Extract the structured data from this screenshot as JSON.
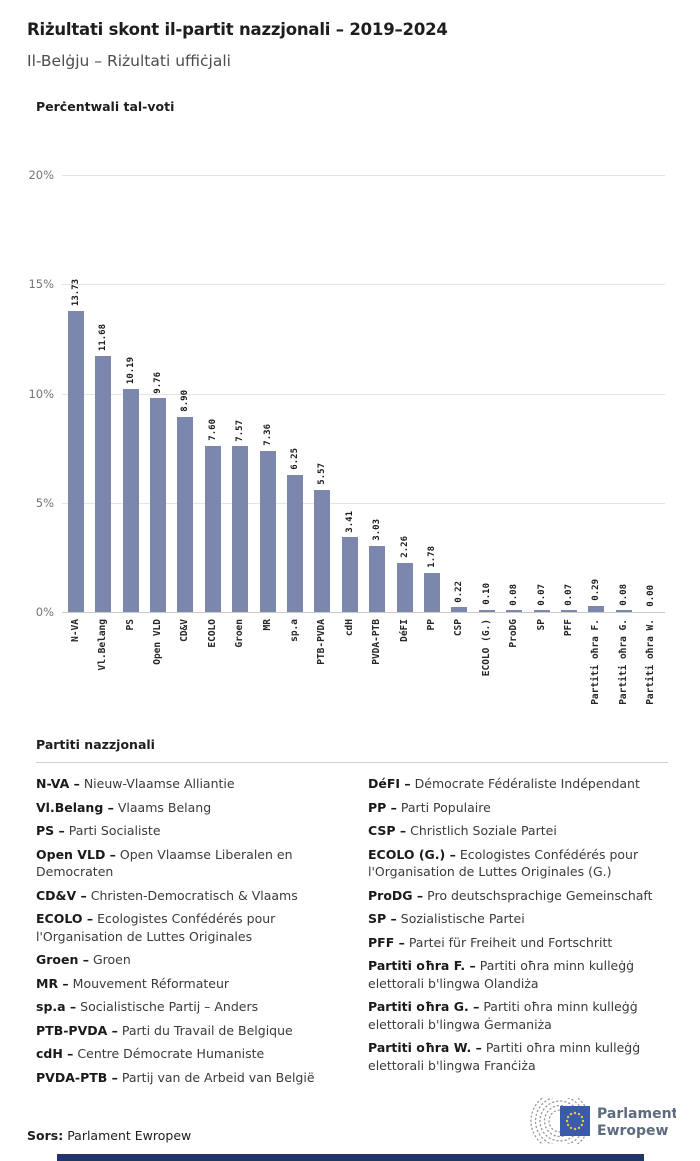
{
  "header": {
    "title": "Riżultati skont il-partit nazzjonali – 2019–2024",
    "subtitle": "Il-Belġju – Riżultati uffiċjali"
  },
  "chart_data": {
    "type": "bar",
    "title": "Perċentwali tal-voti",
    "categories": [
      "N-VA",
      "Vl.Belang",
      "PS",
      "Open VLD",
      "CD&V",
      "ECOLO",
      "Groen",
      "MR",
      "sp.a",
      "PTB-PVDA",
      "cdH",
      "PVDA-PTB",
      "DéFI",
      "PP",
      "CSP",
      "ECOLO (G.)",
      "ProDG",
      "SP",
      "PFF",
      "Partiti oħra F.",
      "Partiti oħra G.",
      "Partiti oħra W."
    ],
    "values": [
      13.73,
      11.68,
      10.19,
      9.76,
      8.9,
      7.6,
      7.57,
      7.36,
      6.25,
      5.57,
      3.41,
      3.03,
      2.26,
      1.78,
      0.22,
      0.1,
      0.08,
      0.07,
      0.07,
      0.29,
      0.08,
      0.0
    ],
    "value_labels": [
      "13.73",
      "11.68",
      "10.19",
      "9.76",
      "8.90",
      "7.60",
      "7.57",
      "7.36",
      "6.25",
      "5.57",
      "3.41",
      "3.03",
      "2.26",
      "1.78",
      "0.22",
      "0.10",
      "0.08",
      "0.07",
      "0.07",
      "0.29",
      "0.08",
      "0.00"
    ],
    "xlabel": "",
    "ylabel": "Perċentwali tal-voti",
    "ylim": [
      0,
      20
    ],
    "yticks": [
      0,
      5,
      10,
      15,
      20
    ],
    "ytick_labels": [
      "0%",
      "5%",
      "10%",
      "15%",
      "20%"
    ],
    "grid": true,
    "legend_position": "none",
    "bar_color": "#7b87ac",
    "value_label_rotation": 90,
    "xtick_rotation": 90
  },
  "legend": {
    "heading": "Partiti nazzjonali",
    "left": [
      {
        "term": "N-VA –",
        "desc": "Nieuw-Vlaamse Alliantie"
      },
      {
        "term": "Vl.Belang –",
        "desc": "Vlaams Belang"
      },
      {
        "term": "PS –",
        "desc": "Parti Socialiste"
      },
      {
        "term": "Open VLD –",
        "desc": "Open Vlaamse Liberalen en Democraten"
      },
      {
        "term": "CD&V –",
        "desc": "Christen-Democratisch & Vlaams"
      },
      {
        "term": "ECOLO –",
        "desc": "Ecologistes Confédérés pour l'Organisation de Luttes Originales"
      },
      {
        "term": "Groen –",
        "desc": "Groen"
      },
      {
        "term": "MR –",
        "desc": "Mouvement Réformateur"
      },
      {
        "term": "sp.a –",
        "desc": "Socialistische Partij – Anders"
      },
      {
        "term": "PTB-PVDA –",
        "desc": "Parti du Travail de Belgique"
      },
      {
        "term": "cdH –",
        "desc": "Centre Démocrate Humaniste"
      },
      {
        "term": "PVDA-PTB –",
        "desc": "Partij van de Arbeid van België"
      }
    ],
    "right": [
      {
        "term": "DéFI –",
        "desc": "Démocrate Fédéraliste Indépendant"
      },
      {
        "term": "PP –",
        "desc": "Parti Populaire"
      },
      {
        "term": "CSP –",
        "desc": "Christlich Soziale Partei"
      },
      {
        "term": "ECOLO (G.) –",
        "desc": "Ecologistes Confédérés pour l'Organisation de Luttes Originales (G.)"
      },
      {
        "term": "ProDG –",
        "desc": "Pro deutschsprachige Gemeinschaft"
      },
      {
        "term": "SP –",
        "desc": "Sozialistische Partei"
      },
      {
        "term": "PFF –",
        "desc": "Partei für Freiheit und Fortschritt"
      },
      {
        "term": "Partiti oħra F. –",
        "desc": "Partiti oħra minn kulleġġ elettorali b'lingwa Olandiża"
      },
      {
        "term": "Partiti oħra G. –",
        "desc": "Partiti oħra minn kulleġġ elettorali b'lingwa Ġermaniża"
      },
      {
        "term": "Partiti oħra W. –",
        "desc": "Partiti oħra minn kulleġġ elettorali b'lingwa Franċiża"
      }
    ]
  },
  "footer": {
    "source_label": "Sors:",
    "source_value": "Parlament Ewropew",
    "logo_line1": "Parlament",
    "logo_line2": "Ewropew",
    "logo_text_color": "#5d6b7e",
    "flag_blue": "#3a5ba9",
    "star_yellow": "#f0c93c",
    "accent_bar_color": "#22356b"
  }
}
